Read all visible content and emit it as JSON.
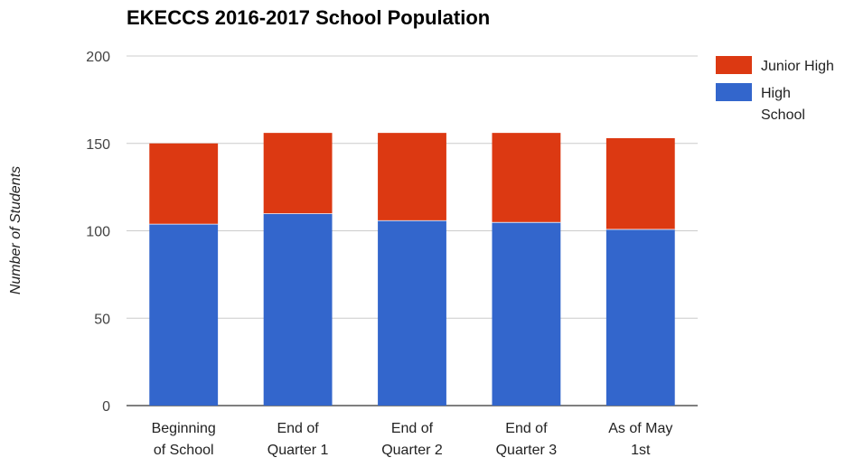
{
  "chart_data": {
    "type": "bar",
    "stacked": true,
    "title": "EKECCS 2016-2017 School Population",
    "xlabel": "",
    "ylabel": "Number of Students",
    "ylim": [
      0,
      200
    ],
    "yticks": [
      "0",
      "50",
      "100",
      "150",
      "200"
    ],
    "grid": true,
    "legend_position": "right",
    "categories": [
      [
        "Beginning",
        "of School"
      ],
      [
        "End of",
        "Quarter 1"
      ],
      [
        "End of",
        "Quarter 2"
      ],
      [
        "End of",
        "Quarter 3"
      ],
      [
        "As of May",
        "1st"
      ]
    ],
    "series": [
      {
        "name": "High School",
        "legend_lines": [
          "High",
          "School"
        ],
        "color": "#3366cc",
        "values": [
          104,
          110,
          106,
          105,
          101
        ]
      },
      {
        "name": "Junior High",
        "legend_lines": [
          "Junior High"
        ],
        "color": "#dc3912",
        "values": [
          46,
          46,
          50,
          51,
          52
        ]
      }
    ]
  }
}
